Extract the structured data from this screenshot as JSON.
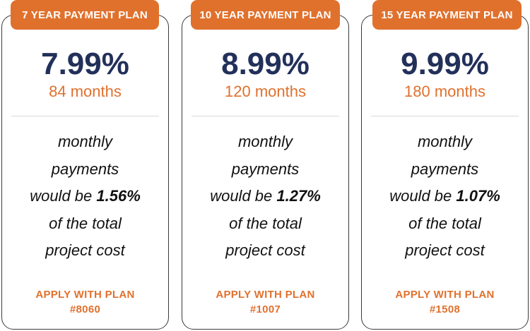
{
  "colors": {
    "accent": "#e0712d",
    "rate": "#22305a",
    "text": "#111111",
    "border": "#3a3a3a",
    "divider": "#d9d9d9"
  },
  "plans": [
    {
      "tab_label": "7 YEAR PAYMENT PLAN",
      "rate": "7.99%",
      "term": "84 months",
      "desc_line1": "monthly",
      "desc_line2": "payments",
      "desc_line3_prefix": "would be ",
      "desc_line3_pct": "1.56%",
      "desc_line4": "of the total",
      "desc_line5": "project cost",
      "apply_line1": "APPLY WITH PLAN",
      "apply_line2": "#8060"
    },
    {
      "tab_label": "10 YEAR PAYMENT PLAN",
      "rate": "8.99%",
      "term": "120 months",
      "desc_line1": "monthly",
      "desc_line2": "payments",
      "desc_line3_prefix": "would be ",
      "desc_line3_pct": "1.27%",
      "desc_line4": "of the total",
      "desc_line5": "project cost",
      "apply_line1": "APPLY WITH PLAN",
      "apply_line2": "#1007"
    },
    {
      "tab_label": "15 YEAR PAYMENT PLAN",
      "rate": "9.99%",
      "term": "180 months",
      "desc_line1": "monthly",
      "desc_line2": "payments",
      "desc_line3_prefix": "would be ",
      "desc_line3_pct": "1.07%",
      "desc_line4": "of the total",
      "desc_line5": "project cost",
      "apply_line1": "APPLY WITH PLAN",
      "apply_line2": "#1508"
    }
  ]
}
